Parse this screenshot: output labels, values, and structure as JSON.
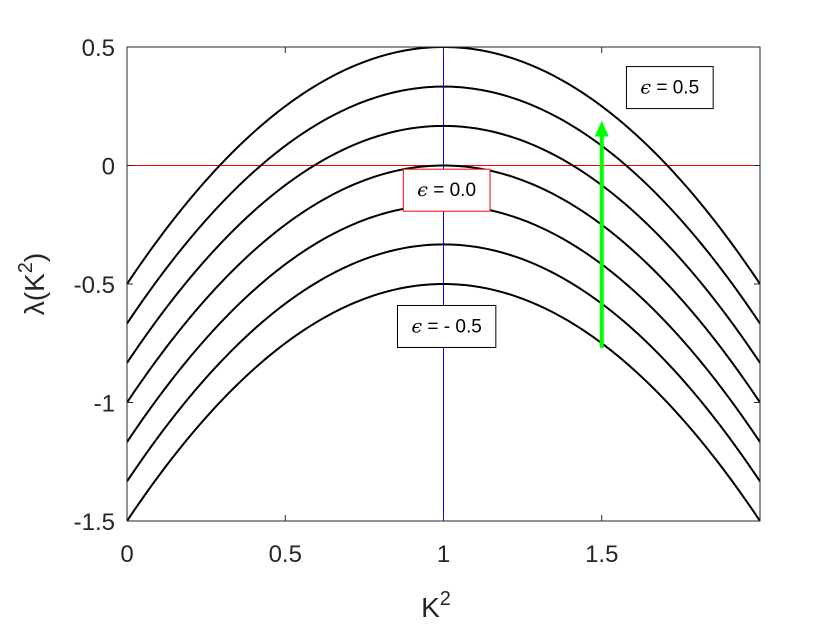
{
  "chart_data": {
    "type": "line",
    "title": "",
    "xlabel": "K",
    "xlabel_sup": "2",
    "ylabel_prefix": "λ(K",
    "ylabel_sup": "2",
    "ylabel_suffix": ")",
    "xlim": [
      0,
      2
    ],
    "ylim": [
      -1.5,
      0.5
    ],
    "x_ticks": [
      0,
      0.5,
      1,
      1.5
    ],
    "x_tick_labels": [
      "0",
      "0.5",
      "1",
      "1.5"
    ],
    "y_ticks": [
      0.5,
      0,
      -0.5,
      -1,
      -1.5
    ],
    "y_tick_labels": [
      "0.5",
      "0",
      "-0.5",
      "-1",
      "-1.5"
    ],
    "grid": false,
    "curve_color": "#000000",
    "series_formula": "lambda = epsilon - (1 - K^2)^2",
    "series": [
      {
        "epsilon": 0.5,
        "peak": 0.5
      },
      {
        "epsilon": 0.333,
        "peak": 0.333
      },
      {
        "epsilon": 0.167,
        "peak": 0.167
      },
      {
        "epsilon": 0.0,
        "peak": 0.0
      },
      {
        "epsilon": -0.167,
        "peak": -0.167
      },
      {
        "epsilon": -0.333,
        "peak": -0.333
      },
      {
        "epsilon": -0.5,
        "peak": -0.5
      }
    ],
    "reference_lines": [
      {
        "orientation": "horizontal",
        "value": 0,
        "color": "#ff0000"
      },
      {
        "orientation": "vertical",
        "value": 1,
        "color": "#0000ff"
      }
    ],
    "arrow": {
      "x": 1.5,
      "y_from": -0.77,
      "y_to": 0.19,
      "color": "#00ff00"
    },
    "annotations": [
      {
        "symbol": "ϵ",
        "text": " = 0.5",
        "x": 1.715,
        "y": 0.333,
        "border_color": "#000000"
      },
      {
        "symbol": "ϵ",
        "text": " = 0.0",
        "x": 1.01,
        "y": -0.1,
        "border_color": "#ff0000"
      },
      {
        "symbol": "ϵ",
        "text": " = - 0.5",
        "x": 1.01,
        "y": -0.675,
        "border_color": "#000000"
      }
    ]
  }
}
